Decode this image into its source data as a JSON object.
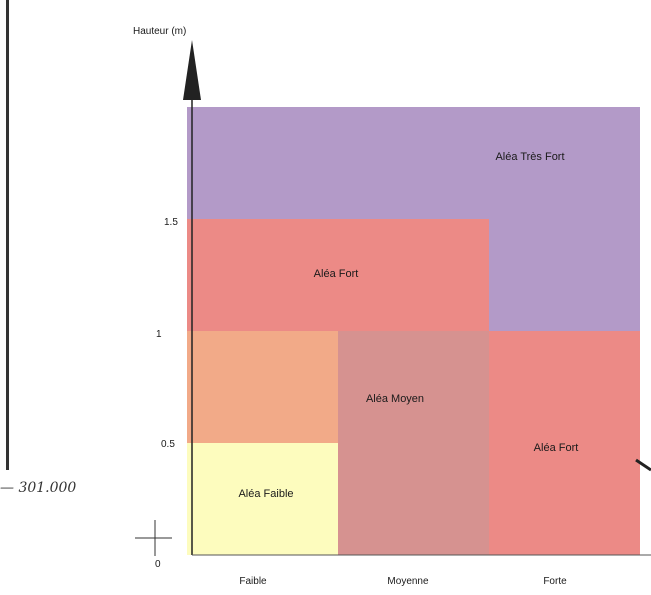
{
  "chart_data": {
    "type": "heatmap",
    "ylabel": "Hauteur (m)",
    "xlabel": "",
    "x_categories": [
      "Faible",
      "Moyenne",
      "Forte"
    ],
    "y_ticks": [
      "0",
      "0.5",
      "1",
      "1.5"
    ],
    "ylim": [
      0,
      2
    ],
    "regions": [
      {
        "label": "Aléa Très Fort",
        "color": "#b39ac8",
        "x": [
          0,
          3
        ],
        "y": [
          1.5,
          2
        ]
      },
      {
        "label": "",
        "color": "#b39ac8",
        "x": [
          2,
          3
        ],
        "y": [
          1,
          1.5
        ]
      },
      {
        "label": "Aléa Fort",
        "color": "#ec8a86",
        "x": [
          0,
          2
        ],
        "y": [
          1,
          1.5
        ]
      },
      {
        "label": "",
        "color": "#f2aa88",
        "x": [
          0,
          1
        ],
        "y": [
          0.5,
          1
        ]
      },
      {
        "label": "Aléa Moyen",
        "color": "#d69290",
        "x": [
          1,
          2
        ],
        "y": [
          0,
          1
        ]
      },
      {
        "label": "Aléa Fort",
        "color": "#ec8a86",
        "x": [
          2,
          3
        ],
        "y": [
          0,
          1
        ]
      },
      {
        "label": "Aléa Faible",
        "color": "#fdfcbe",
        "x": [
          0,
          1
        ],
        "y": [
          0,
          0.5
        ]
      }
    ],
    "grid": false
  },
  "side_note": "— 301.000"
}
